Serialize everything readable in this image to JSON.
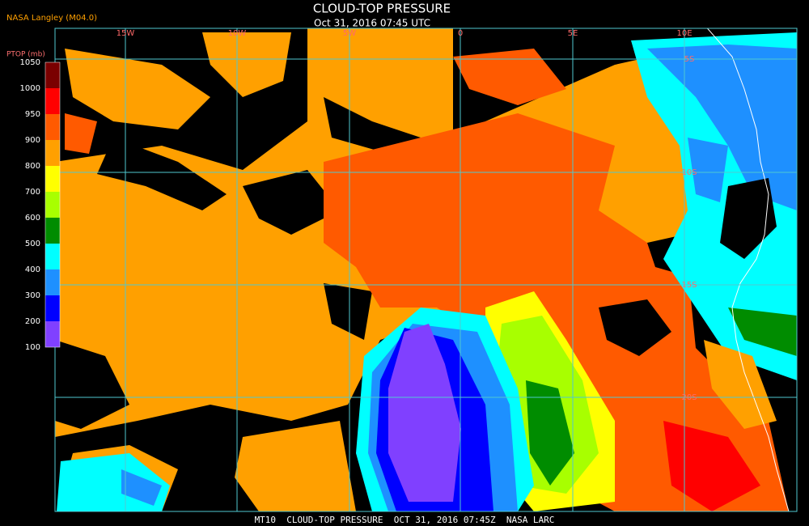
{
  "header": {
    "source": "NASA Langley (M04.0)",
    "title": "CLOUD-TOP PRESSURE",
    "subtitle": "Oct 31, 2016 07:45 UTC"
  },
  "legend": {
    "label": "PTOP (mb)",
    "ticks": [
      1050,
      1000,
      950,
      900,
      800,
      700,
      600,
      500,
      400,
      300,
      200,
      100
    ],
    "colors": [
      "#7a0000",
      "#ff0000",
      "#ff5a00",
      "#ffa000",
      "#ffff00",
      "#a8ff00",
      "#008c00",
      "#00ffff",
      "#1e90ff",
      "#0000ff",
      "#8040ff"
    ]
  },
  "longitudes": [
    "15W",
    "10W",
    "5W",
    "0",
    "5E",
    "10E"
  ],
  "latitudes": [
    "5S",
    "10S",
    "15S",
    "20S"
  ],
  "footer": "MT10  CLOUD-TOP PRESSURE  OCT 31, 2016 07:45Z  NASA LARC"
}
